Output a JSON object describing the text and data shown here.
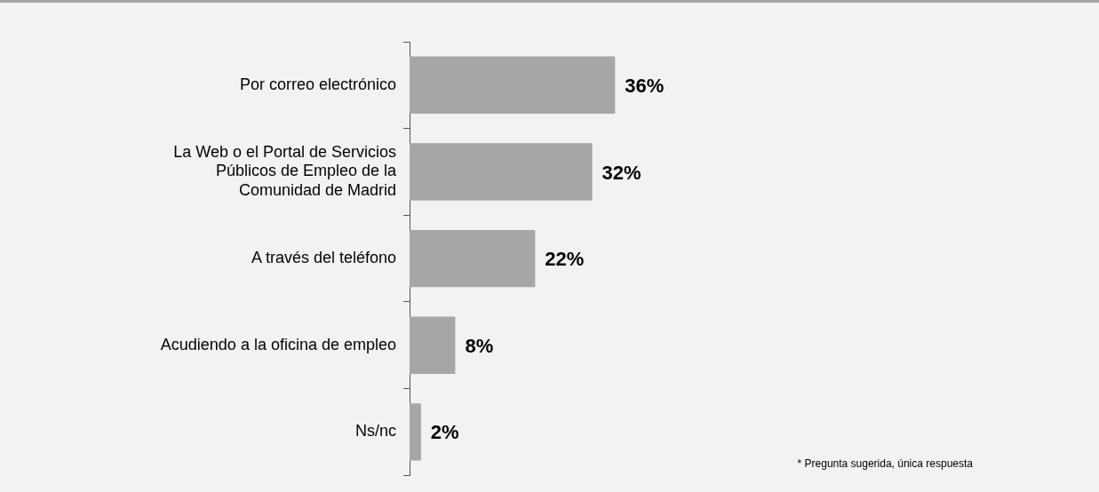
{
  "chart_data": {
    "type": "bar",
    "orientation": "horizontal",
    "categories": [
      "Por correo electrónico",
      "La Web o el Portal de Servicios Públicos de Empleo de la Comunidad de Madrid",
      "A través del teléfono",
      "Acudiendo a la oficina de empleo",
      "Ns/nc"
    ],
    "values": [
      36,
      32,
      22,
      8,
      2
    ],
    "color": "#a6a6a6",
    "data_labels": true,
    "value_labels": [
      "36%",
      "32%",
      "22%",
      "8%",
      "2%"
    ],
    "legend": false,
    "tick_labels": "y",
    "annotations": [
      "* Pregunta sugerida, única respuesta"
    ]
  }
}
